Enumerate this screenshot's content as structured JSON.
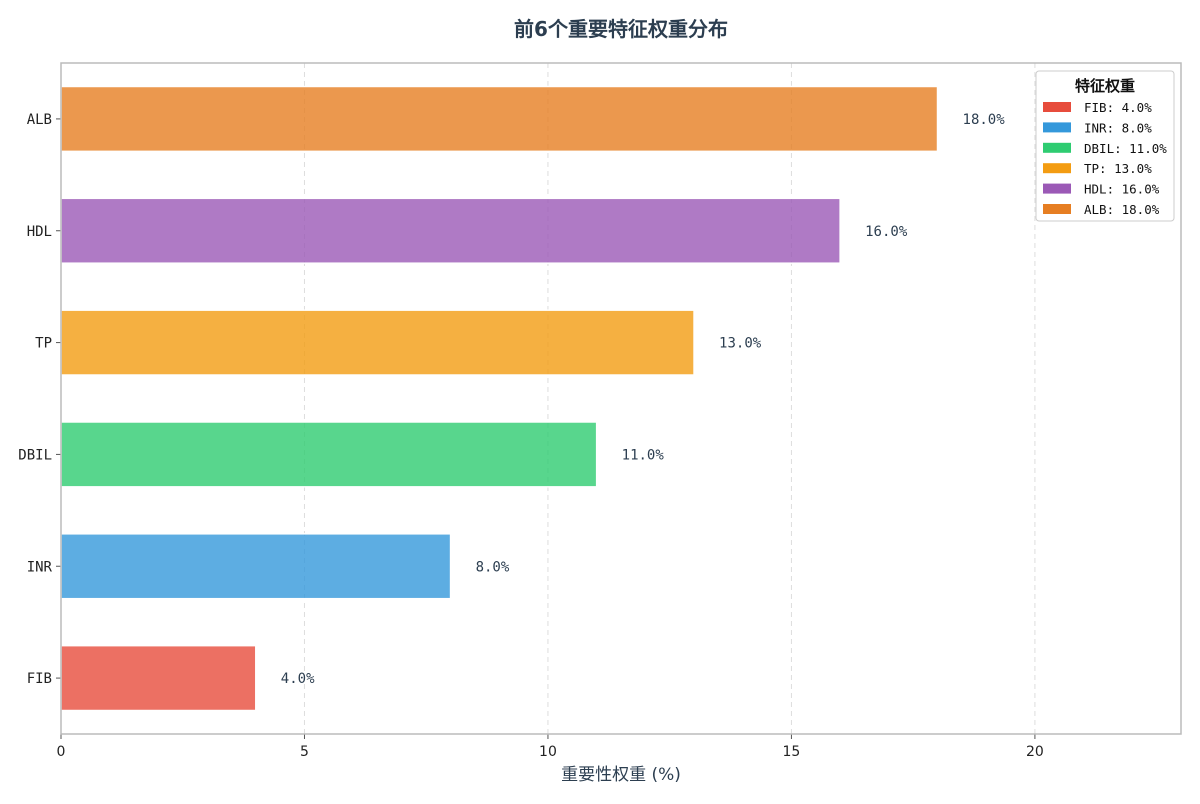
{
  "chart_data": {
    "type": "bar",
    "orientation": "horizontal",
    "title": "前6个重要特征权重分布",
    "xlabel": "重要性权重 (%)",
    "ylabel": "",
    "xlim": [
      0,
      23
    ],
    "xticks": [
      0,
      5,
      10,
      15,
      20
    ],
    "grid": "x-dashed",
    "categories": [
      "FIB",
      "INR",
      "DBIL",
      "TP",
      "HDL",
      "ALB"
    ],
    "values": [
      4.0,
      8.0,
      11.0,
      13.0,
      16.0,
      18.0
    ],
    "value_labels": [
      "4.0%",
      "8.0%",
      "11.0%",
      "13.0%",
      "16.0%",
      "18.0%"
    ],
    "colors": [
      "#e74c3c",
      "#3498db",
      "#2ecc71",
      "#f39c12",
      "#9b59b6",
      "#e67e22"
    ],
    "legend": {
      "title": "特征权重",
      "placement": "top-right",
      "entries": [
        "FIB: 4.0%",
        "INR: 8.0%",
        "DBIL: 11.0%",
        "TP: 13.0%",
        "HDL: 16.0%",
        "ALB: 18.0%"
      ]
    }
  }
}
